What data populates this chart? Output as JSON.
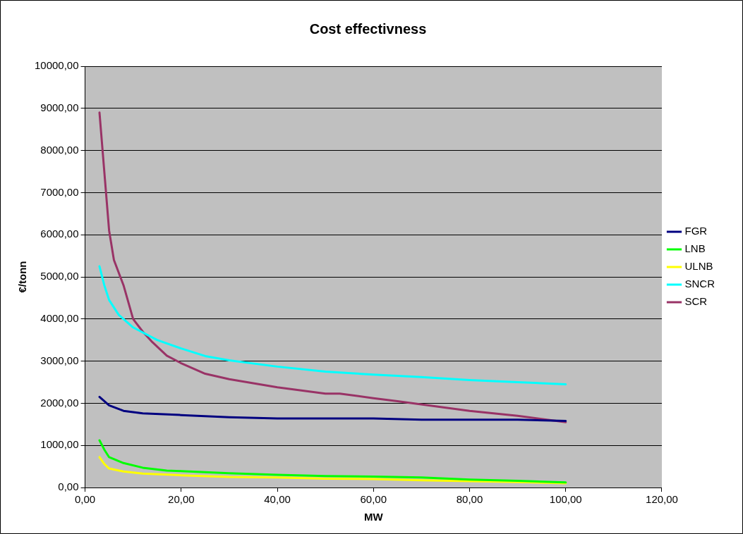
{
  "chart_data": {
    "type": "line",
    "title": "Cost effectivness",
    "xlabel": "MW",
    "ylabel": "€/tonn",
    "xlim": [
      0,
      120
    ],
    "xticks": [
      {
        "value": 0,
        "label": "0,00"
      },
      {
        "value": 20,
        "label": "20,00"
      },
      {
        "value": 40,
        "label": "40,00"
      },
      {
        "value": 60,
        "label": "60,00"
      },
      {
        "value": 80,
        "label": "80,00"
      },
      {
        "value": 100,
        "label": "100,00"
      },
      {
        "value": 120,
        "label": "120,00"
      }
    ],
    "ylim": [
      0,
      10000
    ],
    "yticks": [
      {
        "value": 0,
        "label": "0,00"
      },
      {
        "value": 1000,
        "label": "1000,00"
      },
      {
        "value": 2000,
        "label": "2000,00"
      },
      {
        "value": 3000,
        "label": "3000,00"
      },
      {
        "value": 4000,
        "label": "4000,00"
      },
      {
        "value": 5000,
        "label": "5000,00"
      },
      {
        "value": 6000,
        "label": "6000,00"
      },
      {
        "value": 7000,
        "label": "7000,00"
      },
      {
        "value": 8000,
        "label": "8000,00"
      },
      {
        "value": 9000,
        "label": "9000,00"
      },
      {
        "value": 10000,
        "label": "10000,00"
      }
    ],
    "grid": "y",
    "legend": "right",
    "marker": "none",
    "line_style": "solid",
    "series": [
      {
        "name": "FGR",
        "color": "#000080",
        "x": [
          3,
          5,
          8,
          12,
          20,
          30,
          40,
          60,
          70,
          90,
          100
        ],
        "values": [
          2150,
          1950,
          1820,
          1760,
          1720,
          1670,
          1640,
          1640,
          1610,
          1610,
          1580
        ]
      },
      {
        "name": "LNB",
        "color": "#00ff00",
        "x": [
          3,
          4,
          5,
          8,
          12,
          17,
          20,
          30,
          40,
          50,
          60,
          70,
          80,
          90,
          100
        ],
        "values": [
          1120,
          900,
          720,
          580,
          470,
          400,
          390,
          340,
          300,
          270,
          260,
          240,
          190,
          160,
          120
        ]
      },
      {
        "name": "ULNB",
        "color": "#ffff00",
        "x": [
          3,
          4,
          5,
          8,
          12,
          20,
          30,
          40,
          50,
          60,
          70,
          80,
          90,
          100
        ],
        "values": [
          720,
          560,
          450,
          380,
          330,
          290,
          250,
          240,
          210,
          200,
          170,
          150,
          130,
          100
        ]
      },
      {
        "name": "SNCR",
        "color": "#00ffff",
        "x": [
          3,
          4,
          5,
          7,
          10,
          15,
          20,
          25,
          30,
          40,
          50,
          60,
          70,
          80,
          90,
          100
        ],
        "values": [
          5250,
          4800,
          4450,
          4100,
          3800,
          3500,
          3300,
          3120,
          3020,
          2870,
          2750,
          2680,
          2620,
          2550,
          2500,
          2450
        ]
      },
      {
        "name": "SCR",
        "color": "#993366",
        "x": [
          3,
          4,
          5,
          6,
          8,
          10,
          12,
          14,
          17,
          20,
          25,
          30,
          40,
          50,
          53,
          60,
          65,
          80,
          90,
          100
        ],
        "values": [
          8900,
          7500,
          6100,
          5400,
          4800,
          4000,
          3700,
          3450,
          3130,
          2950,
          2700,
          2570,
          2380,
          2230,
          2230,
          2120,
          2050,
          1820,
          1700,
          1550
        ]
      }
    ]
  }
}
